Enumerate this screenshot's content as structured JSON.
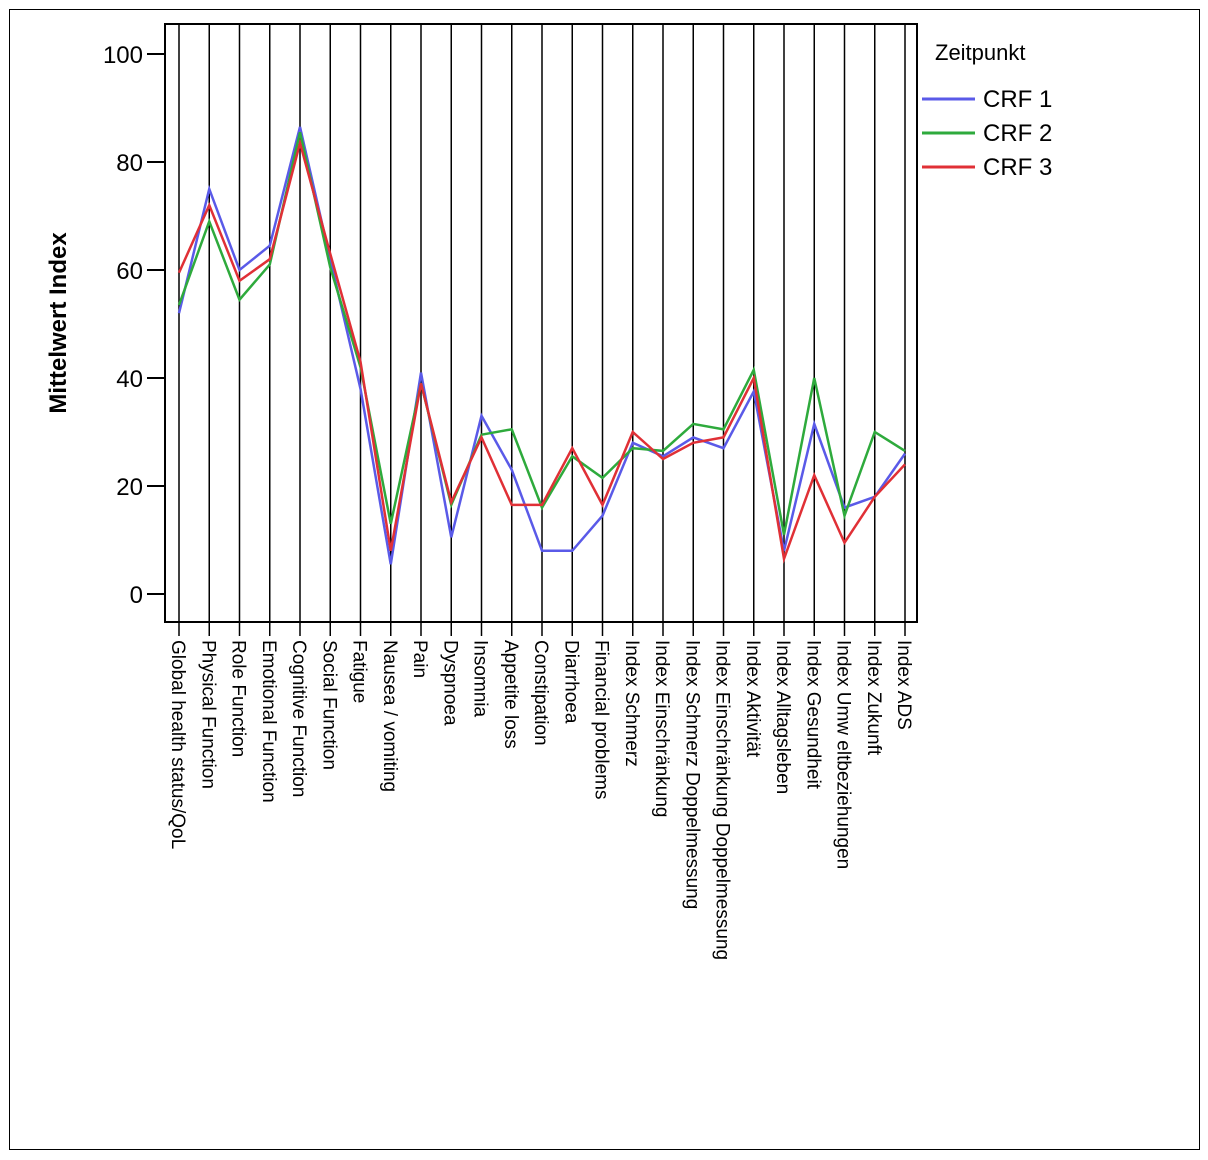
{
  "chart_data": {
    "type": "line",
    "title": "",
    "xlabel": "",
    "ylabel": "Mittelwert Index",
    "ylim": [
      -5,
      105
    ],
    "yticks": [
      0,
      20,
      40,
      60,
      80,
      100
    ],
    "grid": "vertical lines at each category",
    "legend": {
      "title": "Zeitpunkt",
      "placement": "top-right, outside plot"
    },
    "categories": [
      "Global health status/QoL",
      "Physical Function",
      "Role Function",
      "Emotional Function",
      "Cognitive Function",
      "Social Function",
      "Fatigue",
      "Nausea / vomiting",
      "Pain",
      "Dyspnoea",
      "Insomnia",
      "Appetite loss",
      "Constipation",
      "Diarrhoea",
      "Financial problems",
      "Index Schmerz",
      "Index Einschränkung",
      "Index Schmerz Doppelmessung",
      "Index Einschränkung Doppelmessung",
      "Index Aktivität",
      "Index Alltagsleben",
      "Index Gesundheit",
      "Index Umw eltbeziehungen",
      "Index Zukunft",
      "Index ADS"
    ],
    "series": [
      {
        "name": "CRF 1",
        "color": "#5a5ae8",
        "values": [
          52,
          75,
          60,
          64.5,
          86.5,
          62,
          38,
          5.5,
          41,
          10.5,
          33,
          23,
          8,
          8,
          14.5,
          28,
          25.5,
          29,
          27,
          37.5,
          8,
          31.5,
          16,
          18,
          26
        ]
      },
      {
        "name": "CRF 2",
        "color": "#2eaa3c",
        "values": [
          53.5,
          69,
          54.5,
          61,
          85.5,
          60.5,
          42,
          13,
          39,
          16.5,
          29.5,
          30.5,
          16,
          25.5,
          21.5,
          27,
          26.5,
          31.5,
          30.5,
          41.5,
          11,
          40,
          14.5,
          30,
          26.5
        ]
      },
      {
        "name": "CRF 3",
        "color": "#e03036",
        "values": [
          59.5,
          72,
          58,
          62,
          83.5,
          63,
          43,
          8,
          39,
          17,
          29,
          16.5,
          16.5,
          27,
          16.5,
          30,
          25,
          28,
          29,
          40,
          6.5,
          22,
          9.5,
          18,
          24
        ]
      }
    ]
  }
}
